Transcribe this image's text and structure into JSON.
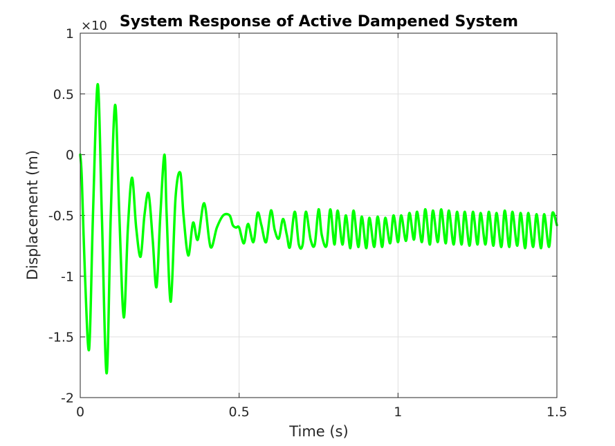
{
  "chart_data": {
    "type": "line",
    "title": "System Response of Active Dampened System",
    "xlabel": "Time (s)",
    "ylabel": "Displacement (m)",
    "y_exponent_label": "×10",
    "xlim": [
      0,
      1.5
    ],
    "ylim": [
      -2,
      1
    ],
    "xticks": [
      0,
      0.5,
      1,
      1.5
    ],
    "xtick_labels": [
      "0",
      "0.5",
      "1",
      "1.5"
    ],
    "yticks": [
      1,
      0.5,
      0,
      -0.5,
      -1,
      -1.5,
      -2
    ],
    "ytick_labels": [
      "1",
      "0.5",
      "0",
      "-0.5",
      "-1",
      "-1.5",
      "-2"
    ],
    "grid": true,
    "line_color": "#00ff00",
    "series": [
      {
        "x": [
          0,
          0.005,
          0.015,
          0.028,
          0.04,
          0.055,
          0.068,
          0.083,
          0.096,
          0.11,
          0.123,
          0.137,
          0.15,
          0.163,
          0.176,
          0.19,
          0.202,
          0.215,
          0.228,
          0.24,
          0.252,
          0.265,
          0.272,
          0.285,
          0.3,
          0.315,
          0.325,
          0.34,
          0.355,
          0.37,
          0.39,
          0.41,
          0.43,
          0.45,
          0.47,
          0.48,
          0.49,
          0.5,
          0.515,
          0.528,
          0.545,
          0.558,
          0.57,
          0.585,
          0.6,
          0.612,
          0.625,
          0.638,
          0.65,
          0.66,
          0.675,
          0.688,
          0.7,
          0.71,
          0.725,
          0.738,
          0.75,
          0.76,
          0.775,
          0.787,
          0.8,
          0.81,
          0.825,
          0.836,
          0.85,
          0.86,
          0.875,
          0.886,
          0.9,
          0.91,
          0.925,
          0.936,
          0.95,
          0.96,
          0.975,
          0.986,
          1.0,
          1.01,
          1.025,
          1.036,
          1.05,
          1.06,
          1.075,
          1.086,
          1.1,
          1.11,
          1.125,
          1.136,
          1.15,
          1.16,
          1.175,
          1.186,
          1.2,
          1.21,
          1.225,
          1.236,
          1.25,
          1.26,
          1.275,
          1.286,
          1.3,
          1.31,
          1.325,
          1.336,
          1.35,
          1.36,
          1.375,
          1.386,
          1.4,
          1.41,
          1.425,
          1.436,
          1.45,
          1.46,
          1.475,
          1.486,
          1.5
        ],
        "y": [
          0,
          -0.2,
          -1.0,
          -1.6,
          -0.5,
          0.58,
          -0.5,
          -1.8,
          -0.5,
          0.41,
          -0.5,
          -1.34,
          -0.6,
          -0.19,
          -0.6,
          -0.84,
          -0.5,
          -0.32,
          -0.7,
          -1.09,
          -0.5,
          0.0,
          -0.5,
          -1.21,
          -0.35,
          -0.15,
          -0.5,
          -0.83,
          -0.56,
          -0.7,
          -0.4,
          -0.76,
          -0.6,
          -0.5,
          -0.5,
          -0.58,
          -0.6,
          -0.6,
          -0.73,
          -0.57,
          -0.72,
          -0.48,
          -0.58,
          -0.72,
          -0.46,
          -0.62,
          -0.69,
          -0.53,
          -0.66,
          -0.76,
          -0.47,
          -0.74,
          -0.74,
          -0.47,
          -0.7,
          -0.74,
          -0.45,
          -0.66,
          -0.75,
          -0.45,
          -0.74,
          -0.46,
          -0.74,
          -0.5,
          -0.77,
          -0.46,
          -0.76,
          -0.51,
          -0.77,
          -0.52,
          -0.76,
          -0.51,
          -0.76,
          -0.52,
          -0.73,
          -0.5,
          -0.72,
          -0.5,
          -0.71,
          -0.48,
          -0.7,
          -0.47,
          -0.72,
          -0.45,
          -0.74,
          -0.46,
          -0.72,
          -0.45,
          -0.73,
          -0.46,
          -0.74,
          -0.47,
          -0.74,
          -0.47,
          -0.75,
          -0.47,
          -0.74,
          -0.48,
          -0.74,
          -0.47,
          -0.75,
          -0.48,
          -0.76,
          -0.46,
          -0.76,
          -0.47,
          -0.75,
          -0.48,
          -0.77,
          -0.48,
          -0.76,
          -0.49,
          -0.77,
          -0.49,
          -0.76,
          -0.48,
          -0.58
        ]
      }
    ]
  }
}
